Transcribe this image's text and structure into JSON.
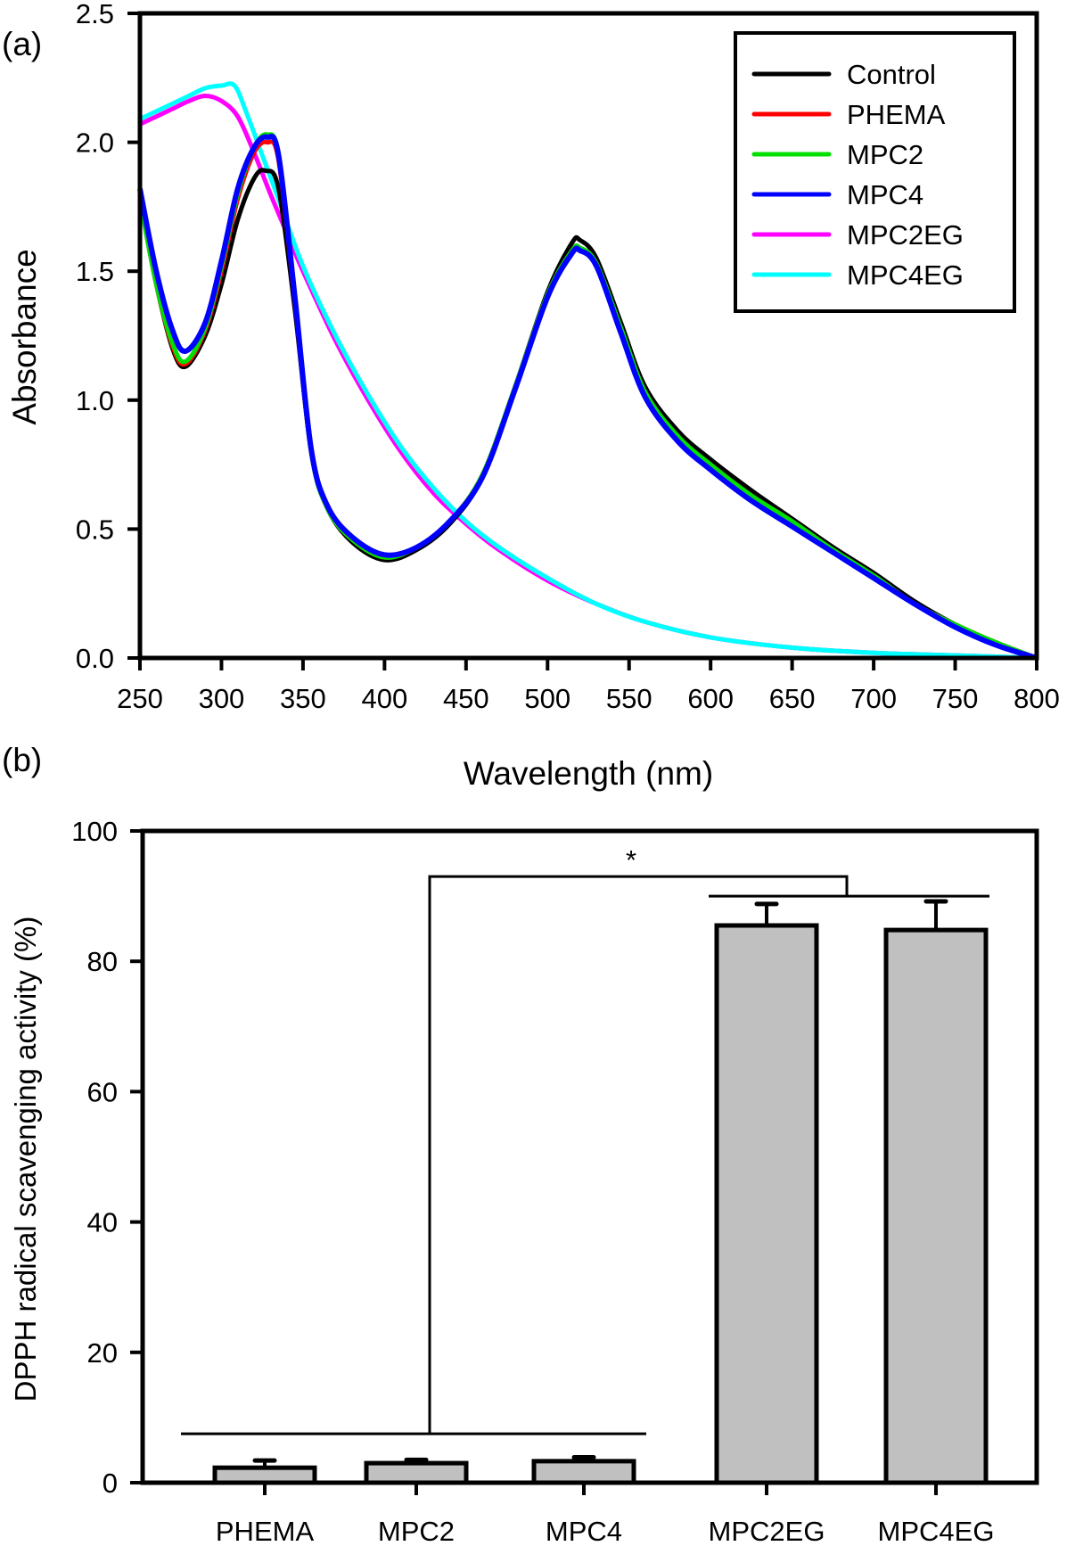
{
  "chart_data": [
    {
      "panel": "(a)",
      "type": "line",
      "title": "",
      "xlabel": "Wavelength (nm)",
      "ylabel": "Absorbance",
      "xlim": [
        250,
        800
      ],
      "ylim": [
        0.0,
        2.5
      ],
      "xticks": [
        250,
        300,
        350,
        400,
        450,
        500,
        550,
        600,
        650,
        700,
        750,
        800
      ],
      "yticks": [
        "0.0",
        "0.5",
        "1.0",
        "1.5",
        "2.0",
        "2.5"
      ],
      "grid": false,
      "legend_position": "top-right",
      "series": [
        {
          "name": "Control",
          "color": "#000000",
          "x": [
            250,
            260,
            270,
            278,
            290,
            300,
            310,
            320,
            327,
            335,
            345,
            355,
            365,
            380,
            400,
            420,
            440,
            460,
            480,
            500,
            515,
            520,
            530,
            545,
            560,
            580,
            600,
            625,
            650,
            675,
            700,
            725,
            750,
            775,
            800
          ],
          "y": [
            1.78,
            1.45,
            1.2,
            1.13,
            1.25,
            1.45,
            1.7,
            1.86,
            1.89,
            1.82,
            1.35,
            0.8,
            0.58,
            0.45,
            0.38,
            0.42,
            0.52,
            0.7,
            1.05,
            1.42,
            1.61,
            1.62,
            1.55,
            1.3,
            1.05,
            0.88,
            0.77,
            0.65,
            0.54,
            0.43,
            0.33,
            0.22,
            0.13,
            0.06,
            0.0
          ]
        },
        {
          "name": "PHEMA",
          "color": "#ff0000",
          "x": [
            250,
            260,
            270,
            278,
            290,
            300,
            310,
            320,
            328,
            335,
            345,
            355,
            365,
            380,
            400,
            420,
            440,
            460,
            480,
            500,
            515,
            520,
            530,
            545,
            560,
            580,
            600,
            625,
            650,
            675,
            700,
            725,
            750,
            775,
            800
          ],
          "y": [
            1.78,
            1.45,
            1.21,
            1.14,
            1.27,
            1.5,
            1.78,
            1.96,
            2.0,
            1.93,
            1.38,
            0.8,
            0.58,
            0.46,
            0.39,
            0.43,
            0.53,
            0.71,
            1.05,
            1.41,
            1.58,
            1.59,
            1.53,
            1.28,
            1.03,
            0.86,
            0.75,
            0.63,
            0.53,
            0.42,
            0.32,
            0.21,
            0.13,
            0.06,
            0.0
          ]
        },
        {
          "name": "MPC2",
          "color": "#00e000",
          "x": [
            250,
            260,
            270,
            278,
            290,
            300,
            310,
            320,
            328,
            335,
            345,
            355,
            365,
            380,
            400,
            420,
            440,
            460,
            480,
            500,
            515,
            520,
            530,
            545,
            560,
            580,
            600,
            625,
            650,
            675,
            700,
            725,
            750,
            775,
            800
          ],
          "y": [
            1.78,
            1.45,
            1.22,
            1.15,
            1.28,
            1.52,
            1.8,
            1.98,
            2.03,
            1.95,
            1.39,
            0.8,
            0.58,
            0.46,
            0.39,
            0.43,
            0.53,
            0.71,
            1.05,
            1.41,
            1.58,
            1.59,
            1.53,
            1.28,
            1.03,
            0.86,
            0.75,
            0.63,
            0.53,
            0.42,
            0.32,
            0.21,
            0.13,
            0.06,
            0.0
          ]
        },
        {
          "name": "MPC4",
          "color": "#0000ff",
          "x": [
            250,
            260,
            270,
            278,
            290,
            300,
            310,
            320,
            328,
            335,
            345,
            355,
            365,
            380,
            400,
            420,
            440,
            460,
            480,
            500,
            515,
            520,
            530,
            545,
            560,
            580,
            600,
            625,
            650,
            675,
            700,
            725,
            750,
            775,
            800
          ],
          "y": [
            1.82,
            1.5,
            1.27,
            1.19,
            1.3,
            1.54,
            1.82,
            1.98,
            2.02,
            1.95,
            1.4,
            0.81,
            0.59,
            0.47,
            0.4,
            0.43,
            0.53,
            0.7,
            1.04,
            1.4,
            1.57,
            1.58,
            1.52,
            1.26,
            1.01,
            0.84,
            0.73,
            0.61,
            0.51,
            0.41,
            0.31,
            0.21,
            0.12,
            0.05,
            0.0
          ]
        },
        {
          "name": "MPC2EG",
          "color": "#ff00ff",
          "x": [
            250,
            260,
            270,
            280,
            290,
            300,
            310,
            320,
            330,
            340,
            350,
            370,
            390,
            410,
            430,
            450,
            470,
            500,
            530,
            560,
            600,
            650,
            700,
            750,
            800
          ],
          "y": [
            2.07,
            2.1,
            2.13,
            2.16,
            2.18,
            2.16,
            2.1,
            1.96,
            1.8,
            1.65,
            1.5,
            1.23,
            1.0,
            0.8,
            0.64,
            0.52,
            0.42,
            0.3,
            0.21,
            0.14,
            0.08,
            0.04,
            0.02,
            0.01,
            0.0
          ]
        },
        {
          "name": "MPC4EG",
          "color": "#00ffff",
          "x": [
            250,
            260,
            270,
            280,
            290,
            300,
            308,
            315,
            325,
            335,
            350,
            370,
            390,
            410,
            430,
            450,
            470,
            500,
            530,
            560,
            600,
            650,
            700,
            750,
            800
          ],
          "y": [
            2.09,
            2.12,
            2.15,
            2.18,
            2.21,
            2.22,
            2.22,
            2.12,
            1.95,
            1.78,
            1.52,
            1.25,
            1.02,
            0.82,
            0.66,
            0.53,
            0.43,
            0.31,
            0.21,
            0.14,
            0.08,
            0.04,
            0.02,
            0.01,
            0.0
          ]
        }
      ]
    },
    {
      "panel": "(b)",
      "type": "bar",
      "title": "",
      "xlabel": "",
      "ylabel": "DPPH radical scavenging activity (%)",
      "ylim": [
        0,
        100
      ],
      "yticks": [
        "0",
        "20",
        "40",
        "60",
        "80",
        "100"
      ],
      "grid": false,
      "bar_color": "#c0c0c0",
      "categories": [
        "PHEMA",
        "MPC2",
        "MPC4",
        "MPC2EG",
        "MPC4EG"
      ],
      "values": [
        2.3,
        3.0,
        3.3,
        85.5,
        84.8
      ],
      "errors": [
        1.1,
        0.5,
        0.6,
        3.3,
        4.4
      ],
      "annotations": [
        {
          "type": "significance",
          "label": "*",
          "group1": [
            "PHEMA",
            "MPC2",
            "MPC4"
          ],
          "group2": [
            "MPC2EG",
            "MPC4EG"
          ],
          "group1_line_y": 7.5,
          "group2_line_y": 90,
          "bridge_y": 93
        }
      ]
    }
  ]
}
